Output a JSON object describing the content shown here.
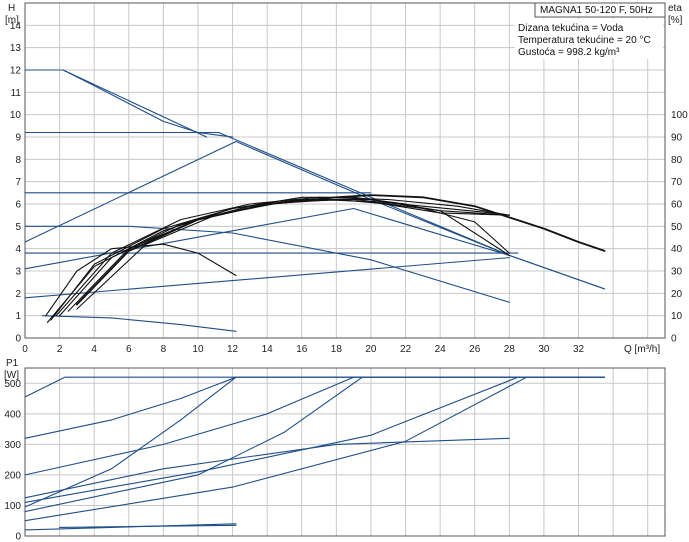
{
  "header": {
    "title": "MAGNA1 50-120 F, 50Hz",
    "info": [
      "Dizana tekućina = Voda",
      "Temperatura tekućine = 20 °C",
      "Gustoća = 998.2 kg/m³"
    ]
  },
  "colors": {
    "blue": "#1f4e89",
    "black": "#111111",
    "grid": "#c8c8c8"
  },
  "chart_data": [
    {
      "type": "line",
      "title": "",
      "xlabel": "Q [m³/h]",
      "ylabel_left": [
        "H",
        "[m]"
      ],
      "ylabel_right": [
        "eta",
        "[%]"
      ],
      "xlim": [
        0,
        37
      ],
      "ylim_left": [
        0,
        15
      ],
      "ylim_right": [
        0,
        150
      ],
      "x_ticks": [
        0,
        2,
        4,
        6,
        8,
        10,
        12,
        14,
        16,
        18,
        20,
        22,
        24,
        26,
        28,
        30,
        32
      ],
      "y_ticks_left": [
        0,
        1,
        2,
        3,
        4,
        5,
        6,
        7,
        8,
        9,
        10,
        11,
        12,
        13,
        14
      ],
      "y_ticks_right": [
        0,
        10,
        20,
        30,
        40,
        50,
        60,
        70,
        80,
        90,
        100
      ],
      "grid": true,
      "series": [
        {
          "kind": "blue",
          "x": [
            0,
            2.2,
            4,
            6,
            8,
            10,
            11,
            12
          ],
          "y": [
            12.0,
            12.0,
            11.3,
            10.5,
            9.7,
            9.2,
            9.1,
            9.0
          ]
        },
        {
          "kind": "blue",
          "x": [
            0,
            2.2,
            10.5
          ],
          "y": [
            12.0,
            12.0,
            9.0
          ]
        },
        {
          "kind": "blue",
          "x": [
            0,
            11.2
          ],
          "y": [
            9.2,
            9.2
          ]
        },
        {
          "kind": "blue",
          "x": [
            0,
            12.2
          ],
          "y": [
            4.3,
            8.8
          ]
        },
        {
          "kind": "blue",
          "x": [
            12.2,
            20,
            28,
            33.5
          ],
          "y": [
            8.8,
            6.2,
            3.7,
            2.2
          ]
        },
        {
          "kind": "blue",
          "x": [
            11.2,
            20,
            28,
            33.5
          ],
          "y": [
            9.2,
            6.3,
            3.7,
            2.2
          ]
        },
        {
          "kind": "blue",
          "x": [
            0,
            20
          ],
          "y": [
            6.5,
            6.5
          ]
        },
        {
          "kind": "blue",
          "x": [
            0,
            6,
            12,
            20,
            28
          ],
          "y": [
            5.0,
            5.0,
            4.7,
            3.5,
            1.6
          ]
        },
        {
          "kind": "blue",
          "x": [
            0,
            12,
            19,
            28
          ],
          "y": [
            3.1,
            4.8,
            5.8,
            3.7
          ]
        },
        {
          "kind": "blue",
          "x": [
            0,
            28.5
          ],
          "y": [
            3.8,
            3.8
          ]
        },
        {
          "kind": "blue",
          "x": [
            0,
            28
          ],
          "y": [
            1.8,
            3.6
          ]
        },
        {
          "kind": "blue",
          "x": [
            1,
            5,
            9,
            12.2
          ],
          "y": [
            1.0,
            0.9,
            0.6,
            0.3
          ]
        },
        {
          "kind": "black",
          "x": [
            1.2,
            3,
            5,
            8,
            10,
            12.2
          ],
          "y": [
            1.0,
            3.0,
            4.0,
            4.2,
            3.8,
            2.8
          ]
        },
        {
          "kind": "black",
          "x": [
            1.5,
            4,
            8,
            12,
            16,
            20,
            24,
            28
          ],
          "y": [
            0.8,
            3.3,
            4.9,
            5.8,
            6.2,
            6.2,
            5.7,
            3.7
          ]
        },
        {
          "kind": "black",
          "x": [
            2,
            5,
            9,
            13,
            17,
            20,
            24,
            28
          ],
          "y": [
            1.0,
            3.6,
            5.1,
            5.9,
            6.2,
            6.1,
            5.6,
            5.5
          ]
        },
        {
          "kind": "black",
          "x": [
            1.3,
            4,
            8,
            12,
            16,
            19,
            22,
            26,
            28
          ],
          "y": [
            0.7,
            3.2,
            4.8,
            5.8,
            6.3,
            6.3,
            6.0,
            5.2,
            3.8
          ]
        },
        {
          "kind": "black",
          "x": [
            1.8,
            5,
            9,
            13,
            17,
            21,
            25,
            28
          ],
          "y": [
            1.0,
            3.8,
            5.3,
            6.0,
            6.3,
            6.2,
            5.9,
            5.5
          ]
        },
        {
          "kind": "black",
          "x": [
            2.5,
            6,
            10,
            14,
            18,
            21,
            24,
            28
          ],
          "y": [
            1.2,
            4.0,
            5.3,
            6.0,
            6.2,
            6.0,
            5.7,
            5.5
          ]
        },
        {
          "kind": "black",
          "x": [
            3,
            7,
            11,
            15,
            19,
            23,
            27,
            28
          ],
          "y": [
            1.3,
            4.2,
            5.5,
            6.1,
            6.2,
            5.9,
            5.6,
            5.5
          ]
        },
        {
          "kind": "black_thick",
          "x": [
            3,
            6,
            10,
            14,
            18,
            20,
            23,
            26,
            28,
            30,
            32,
            33.5
          ],
          "y": [
            1.5,
            3.9,
            5.3,
            6.0,
            6.3,
            6.4,
            6.3,
            5.9,
            5.4,
            4.9,
            4.3,
            3.9
          ]
        }
      ]
    },
    {
      "type": "line",
      "title": "",
      "ylabel": [
        "P1",
        "[W]"
      ],
      "xlim": [
        0,
        37
      ],
      "ylim": [
        0,
        550
      ],
      "y_ticks": [
        0,
        100,
        200,
        300,
        400,
        500
      ],
      "grid": true,
      "series": [
        {
          "kind": "blue",
          "x": [
            0,
            2.3,
            33.5
          ],
          "y": [
            455,
            520,
            520
          ]
        },
        {
          "kind": "blue",
          "x": [
            0,
            5,
            9,
            12.2,
            33.5
          ],
          "y": [
            320,
            380,
            450,
            520,
            520
          ]
        },
        {
          "kind": "blue",
          "x": [
            0,
            5,
            9,
            12.2
          ],
          "y": [
            95,
            220,
            380,
            520
          ]
        },
        {
          "kind": "blue",
          "x": [
            0,
            8,
            14,
            19,
            33.5
          ],
          "y": [
            200,
            300,
            400,
            520,
            520
          ]
        },
        {
          "kind": "blue",
          "x": [
            0,
            10,
            15,
            19.5
          ],
          "y": [
            80,
            200,
            340,
            520
          ]
        },
        {
          "kind": "blue",
          "x": [
            0,
            10,
            20,
            28.5
          ],
          "y": [
            110,
            210,
            330,
            520
          ]
        },
        {
          "kind": "blue",
          "x": [
            0,
            12,
            22,
            29,
            33.5
          ],
          "y": [
            50,
            160,
            310,
            520,
            520
          ]
        },
        {
          "kind": "blue",
          "x": [
            0,
            8,
            18,
            28
          ],
          "y": [
            125,
            220,
            300,
            320
          ]
        },
        {
          "kind": "blue",
          "x": [
            0,
            12.2
          ],
          "y": [
            20,
            40
          ]
        },
        {
          "kind": "blue",
          "x": [
            2,
            12.2
          ],
          "y": [
            28,
            35
          ]
        }
      ]
    }
  ]
}
